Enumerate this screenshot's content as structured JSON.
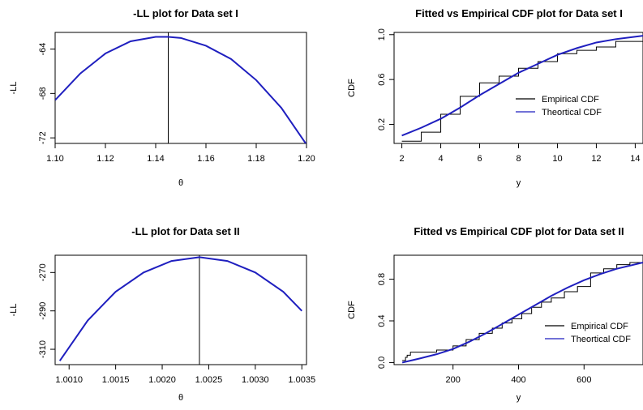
{
  "chart_data": [
    {
      "type": "line",
      "title": "-LL plot for Data set I",
      "xlabel": "θ",
      "ylabel": "-LL",
      "xlim": [
        1.1,
        1.2
      ],
      "ylim": [
        -72.5,
        -62.5
      ],
      "xticks": [
        {
          "v": 1.1,
          "label": "1.10"
        },
        {
          "v": 1.12,
          "label": "1.12"
        },
        {
          "v": 1.14,
          "label": "1.14"
        },
        {
          "v": 1.16,
          "label": "1.16"
        },
        {
          "v": 1.18,
          "label": "1.18"
        },
        {
          "v": 1.2,
          "label": "1.20"
        }
      ],
      "yticks": [
        {
          "v": -64,
          "label": "-64"
        },
        {
          "v": -68,
          "label": "-68"
        },
        {
          "v": -72,
          "label": "-72"
        }
      ],
      "vline": 1.145,
      "series": [
        {
          "color": "#1f1fbf",
          "x": [
            1.1,
            1.11,
            1.12,
            1.13,
            1.14,
            1.145,
            1.15,
            1.16,
            1.17,
            1.18,
            1.19,
            1.2
          ],
          "y": [
            -68.6,
            -66.2,
            -64.4,
            -63.3,
            -62.9,
            -62.9,
            -63.0,
            -63.7,
            -64.9,
            -66.8,
            -69.3,
            -72.6
          ]
        }
      ]
    },
    {
      "type": "line",
      "title": "Fitted vs Empirical CDF plot for Data set I",
      "xlabel": "y",
      "ylabel": "CDF",
      "xlim": [
        1.6,
        14.4
      ],
      "ylim": [
        0.03,
        1.02
      ],
      "xticks": [
        {
          "v": 2,
          "label": "2"
        },
        {
          "v": 4,
          "label": "4"
        },
        {
          "v": 6,
          "label": "6"
        },
        {
          "v": 8,
          "label": "8"
        },
        {
          "v": 10,
          "label": "10"
        },
        {
          "v": 12,
          "label": "12"
        },
        {
          "v": 14,
          "label": "14"
        }
      ],
      "yticks": [
        {
          "v": 0.2,
          "label": "0.2"
        },
        {
          "v": 0.6,
          "label": "0.6"
        },
        {
          "v": 1.0,
          "label": "1.0"
        }
      ],
      "legend": {
        "position": "right",
        "entries": [
          {
            "label": "Empirical CDF",
            "color": "#000000"
          },
          {
            "label": "Theortical CDF",
            "color": "#1f1fbf"
          }
        ]
      },
      "series": [
        {
          "name": "Empirical CDF",
          "color": "#000000",
          "step": true,
          "x": [
            2,
            3,
            4,
            5,
            6,
            7,
            8,
            9,
            10,
            11,
            12,
            13,
            14.4
          ],
          "y": [
            0.05,
            0.13,
            0.29,
            0.45,
            0.57,
            0.63,
            0.7,
            0.76,
            0.83,
            0.86,
            0.89,
            0.94,
            0.97
          ]
        },
        {
          "name": "Theortical CDF",
          "color": "#1f1fbf",
          "step": false,
          "x": [
            2,
            3,
            4,
            5,
            6,
            7,
            8,
            9,
            10,
            11,
            12,
            13,
            14.4
          ],
          "y": [
            0.1,
            0.17,
            0.25,
            0.35,
            0.46,
            0.56,
            0.66,
            0.74,
            0.82,
            0.88,
            0.93,
            0.96,
            0.99
          ]
        }
      ]
    },
    {
      "type": "line",
      "title": "-LL plot for Data set II",
      "xlabel": "θ",
      "ylabel": "-LL",
      "xlim": [
        1.00085,
        1.00355
      ],
      "ylim": [
        -318,
        -261
      ],
      "xticks": [
        {
          "v": 1.001,
          "label": "1.0010"
        },
        {
          "v": 1.0015,
          "label": "1.0015"
        },
        {
          "v": 1.002,
          "label": "1.0020"
        },
        {
          "v": 1.0025,
          "label": "1.0025"
        },
        {
          "v": 1.003,
          "label": "1.0030"
        },
        {
          "v": 1.0035,
          "label": "1.0035"
        }
      ],
      "yticks": [
        {
          "v": -270,
          "label": "-270"
        },
        {
          "v": -290,
          "label": "-290"
        },
        {
          "v": -310,
          "label": "-310"
        }
      ],
      "vline": 1.0024,
      "series": [
        {
          "color": "#1f1fbf",
          "x": [
            1.0009,
            1.0012,
            1.0015,
            1.0018,
            1.0021,
            1.0024,
            1.0027,
            1.003,
            1.0033,
            1.0035
          ],
          "y": [
            -316,
            -295,
            -280,
            -270,
            -264,
            -262,
            -264,
            -270,
            -280,
            -290
          ]
        }
      ]
    },
    {
      "type": "line",
      "title": "Fitted vs Empirical CDF plot for Data set II",
      "xlabel": "y",
      "ylabel": "CDF",
      "xlim": [
        20,
        780
      ],
      "ylim": [
        -0.02,
        1.03
      ],
      "xticks": [
        {
          "v": 200,
          "label": "200"
        },
        {
          "v": 400,
          "label": "400"
        },
        {
          "v": 600,
          "label": "600"
        }
      ],
      "yticks": [
        {
          "v": 0.0,
          "label": "0.0"
        },
        {
          "v": 0.4,
          "label": "0.4"
        },
        {
          "v": 0.8,
          "label": "0.8"
        }
      ],
      "legend": {
        "position": "right",
        "entries": [
          {
            "label": "Empirical CDF",
            "color": "#000000"
          },
          {
            "label": "Theortical CDF",
            "color": "#1f1fbf"
          }
        ]
      },
      "series": [
        {
          "name": "Empirical CDF",
          "color": "#000000",
          "step": true,
          "x": [
            45,
            55,
            60,
            70,
            150,
            200,
            240,
            280,
            320,
            350,
            380,
            410,
            440,
            470,
            500,
            540,
            580,
            620,
            660,
            700,
            740,
            780
          ],
          "y": [
            0.02,
            0.05,
            0.07,
            0.1,
            0.12,
            0.16,
            0.22,
            0.28,
            0.33,
            0.38,
            0.42,
            0.47,
            0.53,
            0.58,
            0.62,
            0.68,
            0.73,
            0.86,
            0.9,
            0.94,
            0.96,
            0.97
          ]
        },
        {
          "name": "Theortical CDF",
          "color": "#1f1fbf",
          "step": false,
          "x": [
            45,
            100,
            150,
            200,
            250,
            300,
            350,
            400,
            450,
            500,
            550,
            600,
            650,
            700,
            780
          ],
          "y": [
            0.0,
            0.04,
            0.08,
            0.13,
            0.2,
            0.28,
            0.37,
            0.46,
            0.55,
            0.64,
            0.72,
            0.79,
            0.85,
            0.9,
            0.96
          ]
        }
      ]
    }
  ]
}
